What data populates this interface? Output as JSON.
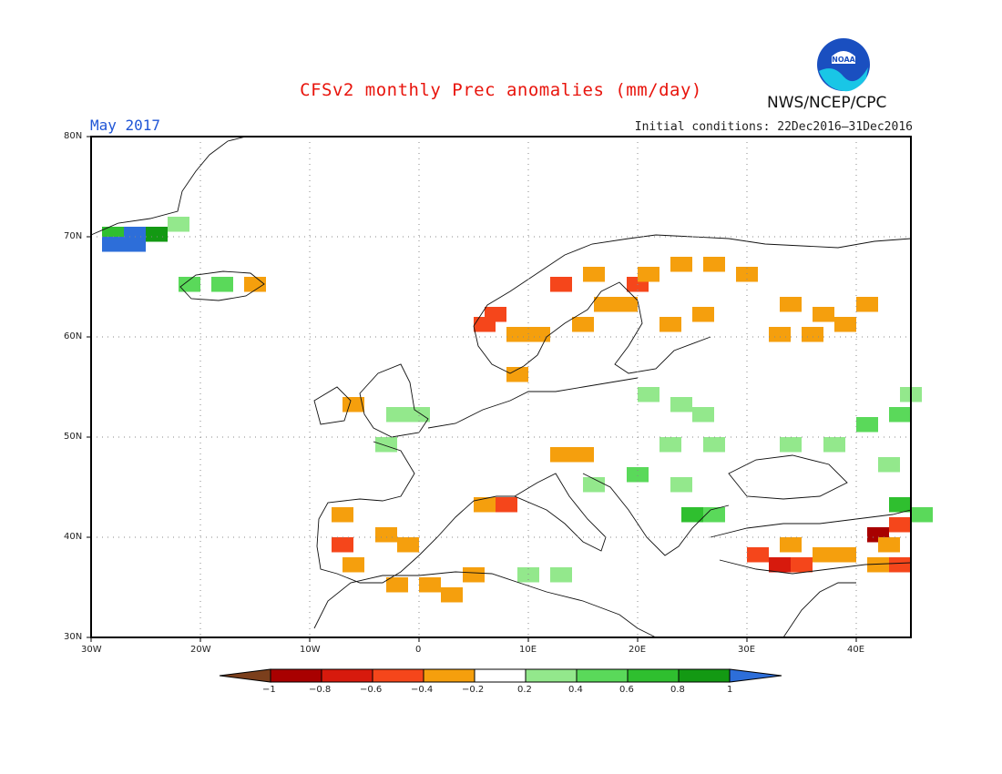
{
  "title": "CFSv2 monthly Prec anomalies (mm/day)",
  "month_label": "May 2017",
  "initial_conditions": "Initial conditions: 22Dec2016–31Dec2016",
  "agency": "NWS/NCEP/CPC",
  "logo": {
    "name": "noaa-logo",
    "text": "NOAA"
  },
  "lat_labels": [
    "80N",
    "70N",
    "60N",
    "50N",
    "40N",
    "30N"
  ],
  "lon_labels": [
    "30W",
    "20W",
    "10W",
    "0",
    "10E",
    "20E",
    "30E",
    "40E"
  ],
  "colorbar": {
    "ticks": [
      "−1",
      "−0.8",
      "−0.6",
      "−0.4",
      "−0.2",
      "0.2",
      "0.4",
      "0.6",
      "0.8",
      "1"
    ],
    "colors": [
      "#7b3f1c",
      "#a80000",
      "#d71a0d",
      "#f5461b",
      "#f59f0d",
      "#ffffff",
      "#93e88c",
      "#5ad95a",
      "#2fbf2f",
      "#139913",
      "#2d6ed9"
    ]
  },
  "chart_data": {
    "type": "heatmap",
    "variable": "Prec anomalies (mm/day)",
    "lon_range": [
      -30,
      45
    ],
    "lat_range": [
      30,
      80
    ],
    "cells": [
      {
        "lon": -29,
        "lat": 70,
        "v": 0.7
      },
      {
        "lon": -27,
        "lat": 70,
        "v": 1.1
      },
      {
        "lon": -25,
        "lat": 70,
        "v": 0.9
      },
      {
        "lon": -29,
        "lat": 69,
        "v": 1.1
      },
      {
        "lon": -27,
        "lat": 69,
        "v": 1.1
      },
      {
        "lon": -23,
        "lat": 71,
        "v": 0.3
      },
      {
        "lon": -22,
        "lat": 65,
        "v": 0.4
      },
      {
        "lon": -19,
        "lat": 65,
        "v": 0.5
      },
      {
        "lon": -16,
        "lat": 65,
        "v": -0.3
      },
      {
        "lon": 12,
        "lat": 65,
        "v": -0.6
      },
      {
        "lon": 15,
        "lat": 66,
        "v": -0.3
      },
      {
        "lon": 19,
        "lat": 65,
        "v": -0.5
      },
      {
        "lon": 20,
        "lat": 66,
        "v": -0.3
      },
      {
        "lon": 23,
        "lat": 67,
        "v": -0.3
      },
      {
        "lon": 26,
        "lat": 67,
        "v": -0.3
      },
      {
        "lon": 29,
        "lat": 66,
        "v": -0.3
      },
      {
        "lon": 16,
        "lat": 63,
        "v": -0.3
      },
      {
        "lon": 18,
        "lat": 63,
        "v": -0.3
      },
      {
        "lon": 14,
        "lat": 61,
        "v": -0.3
      },
      {
        "lon": 22,
        "lat": 61,
        "v": -0.3
      },
      {
        "lon": 25,
        "lat": 62,
        "v": -0.3
      },
      {
        "lon": 5,
        "lat": 61,
        "v": -0.6
      },
      {
        "lon": 6,
        "lat": 62,
        "v": -0.5
      },
      {
        "lon": 8,
        "lat": 60,
        "v": -0.3
      },
      {
        "lon": 10,
        "lat": 60,
        "v": -0.3
      },
      {
        "lon": 8,
        "lat": 56,
        "v": -0.3
      },
      {
        "lon": 33,
        "lat": 63,
        "v": -0.3
      },
      {
        "lon": 36,
        "lat": 62,
        "v": -0.3
      },
      {
        "lon": 40,
        "lat": 63,
        "v": -0.3
      },
      {
        "lon": 32,
        "lat": 60,
        "v": -0.3
      },
      {
        "lon": 35,
        "lat": 60,
        "v": -0.3
      },
      {
        "lon": 38,
        "lat": 61,
        "v": -0.3
      },
      {
        "lon": -7,
        "lat": 53,
        "v": -0.3
      },
      {
        "lon": -3,
        "lat": 52,
        "v": 0.3
      },
      {
        "lon": -1,
        "lat": 52,
        "v": 0.3
      },
      {
        "lon": -4,
        "lat": 49,
        "v": 0.3
      },
      {
        "lon": 12,
        "lat": 48,
        "v": -0.3
      },
      {
        "lon": 14,
        "lat": 48,
        "v": -0.3
      },
      {
        "lon": 5,
        "lat": 43,
        "v": -0.3
      },
      {
        "lon": 7,
        "lat": 43,
        "v": -0.6
      },
      {
        "lon": 20,
        "lat": 54,
        "v": 0.3
      },
      {
        "lon": 23,
        "lat": 53,
        "v": 0.3
      },
      {
        "lon": 25,
        "lat": 52,
        "v": 0.3
      },
      {
        "lon": 22,
        "lat": 49,
        "v": 0.3
      },
      {
        "lon": 26,
        "lat": 49,
        "v": 0.3
      },
      {
        "lon": 15,
        "lat": 45,
        "v": 0.3
      },
      {
        "lon": 19,
        "lat": 46,
        "v": 0.4
      },
      {
        "lon": 23,
        "lat": 45,
        "v": 0.3
      },
      {
        "lon": 24,
        "lat": 42,
        "v": 0.6
      },
      {
        "lon": 26,
        "lat": 42,
        "v": 0.5
      },
      {
        "lon": 33,
        "lat": 49,
        "v": 0.3
      },
      {
        "lon": 37,
        "lat": 49,
        "v": 0.3
      },
      {
        "lon": 40,
        "lat": 51,
        "v": 0.4
      },
      {
        "lon": 43,
        "lat": 52,
        "v": 0.5
      },
      {
        "lon": 44,
        "lat": 54,
        "v": 0.3
      },
      {
        "lon": 42,
        "lat": 47,
        "v": 0.3
      },
      {
        "lon": -8,
        "lat": 42,
        "v": -0.3
      },
      {
        "lon": -8,
        "lat": 39,
        "v": -0.5
      },
      {
        "lon": -7,
        "lat": 37,
        "v": -0.3
      },
      {
        "lon": -4,
        "lat": 40,
        "v": -0.3
      },
      {
        "lon": -2,
        "lat": 39,
        "v": -0.3
      },
      {
        "lon": -3,
        "lat": 35,
        "v": -0.3
      },
      {
        "lon": 0,
        "lat": 35,
        "v": -0.3
      },
      {
        "lon": 2,
        "lat": 34,
        "v": -0.3
      },
      {
        "lon": 4,
        "lat": 36,
        "v": -0.3
      },
      {
        "lon": 9,
        "lat": 36,
        "v": 0.3
      },
      {
        "lon": 12,
        "lat": 36,
        "v": 0.3
      },
      {
        "lon": 30,
        "lat": 38,
        "v": -0.5
      },
      {
        "lon": 32,
        "lat": 37,
        "v": -0.7
      },
      {
        "lon": 34,
        "lat": 37,
        "v": -0.5
      },
      {
        "lon": 33,
        "lat": 39,
        "v": -0.3
      },
      {
        "lon": 36,
        "lat": 38,
        "v": -0.3
      },
      {
        "lon": 38,
        "lat": 38,
        "v": -0.3
      },
      {
        "lon": 41,
        "lat": 40,
        "v": -0.9
      },
      {
        "lon": 43,
        "lat": 41,
        "v": -0.6
      },
      {
        "lon": 42,
        "lat": 39,
        "v": -0.4
      },
      {
        "lon": 43,
        "lat": 37,
        "v": -0.5
      },
      {
        "lon": 41,
        "lat": 37,
        "v": -0.3
      },
      {
        "lon": 43,
        "lat": 43,
        "v": 0.6
      },
      {
        "lon": 45,
        "lat": 42,
        "v": 0.4
      }
    ]
  }
}
